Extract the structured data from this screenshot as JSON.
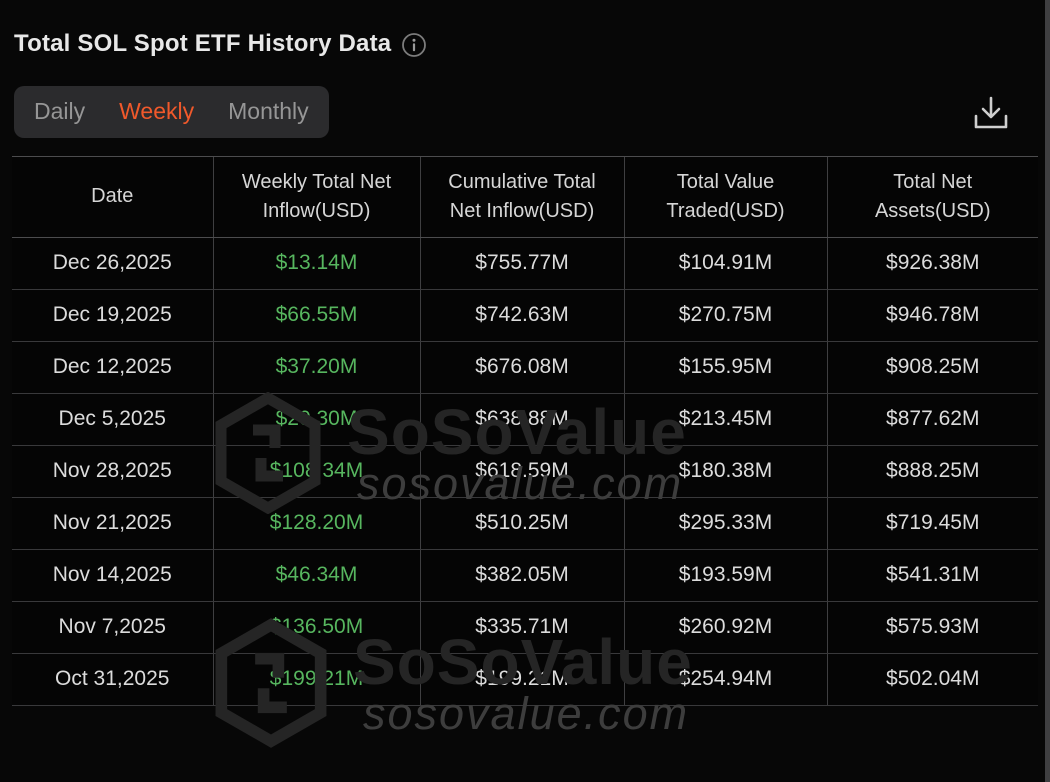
{
  "page": {
    "title": "Total SOL Spot ETF History Data"
  },
  "tabs": {
    "items": [
      {
        "label": "Daily",
        "active": false
      },
      {
        "label": "Weekly",
        "active": true
      },
      {
        "label": "Monthly",
        "active": false
      }
    ]
  },
  "icons": {
    "info": "info-icon",
    "download": "download-icon"
  },
  "colors": {
    "accent_orange": "#F0592B",
    "positive_green": "#57B65F",
    "background": "#070707",
    "cell_border": "#3F3F41",
    "text_primary": "#E8E8E8",
    "text_muted": "#969696",
    "watermark_brand": "#252525",
    "watermark_domain": "#3D3D3D"
  },
  "watermark": {
    "brand": "SoSoValue",
    "domain": "sosovalue.com"
  },
  "table": {
    "columns": [
      "Date",
      "Weekly Total Net Inflow(USD)",
      "Cumulative Total Net Inflow(USD)",
      "Total Value Traded(USD)",
      "Total Net Assets(USD)"
    ],
    "column_keys": [
      "date",
      "weekly-net-inflow",
      "cumulative-net-inflow",
      "value-traded",
      "net-assets"
    ],
    "positive_column_index": 1,
    "rows": [
      [
        "Dec 26,2025",
        "$13.14M",
        "$755.77M",
        "$104.91M",
        "$926.38M"
      ],
      [
        "Dec 19,2025",
        "$66.55M",
        "$742.63M",
        "$270.75M",
        "$946.78M"
      ],
      [
        "Dec 12,2025",
        "$37.20M",
        "$676.08M",
        "$155.95M",
        "$908.25M"
      ],
      [
        "Dec 5,2025",
        "$20.30M",
        "$638.88M",
        "$213.45M",
        "$877.62M"
      ],
      [
        "Nov 28,2025",
        "$108.34M",
        "$618.59M",
        "$180.38M",
        "$888.25M"
      ],
      [
        "Nov 21,2025",
        "$128.20M",
        "$510.25M",
        "$295.33M",
        "$719.45M"
      ],
      [
        "Nov 14,2025",
        "$46.34M",
        "$382.05M",
        "$193.59M",
        "$541.31M"
      ],
      [
        "Nov 7,2025",
        "$136.50M",
        "$335.71M",
        "$260.92M",
        "$575.93M"
      ],
      [
        "Oct 31,2025",
        "$199.21M",
        "$199.21M",
        "$254.94M",
        "$502.04M"
      ]
    ]
  }
}
